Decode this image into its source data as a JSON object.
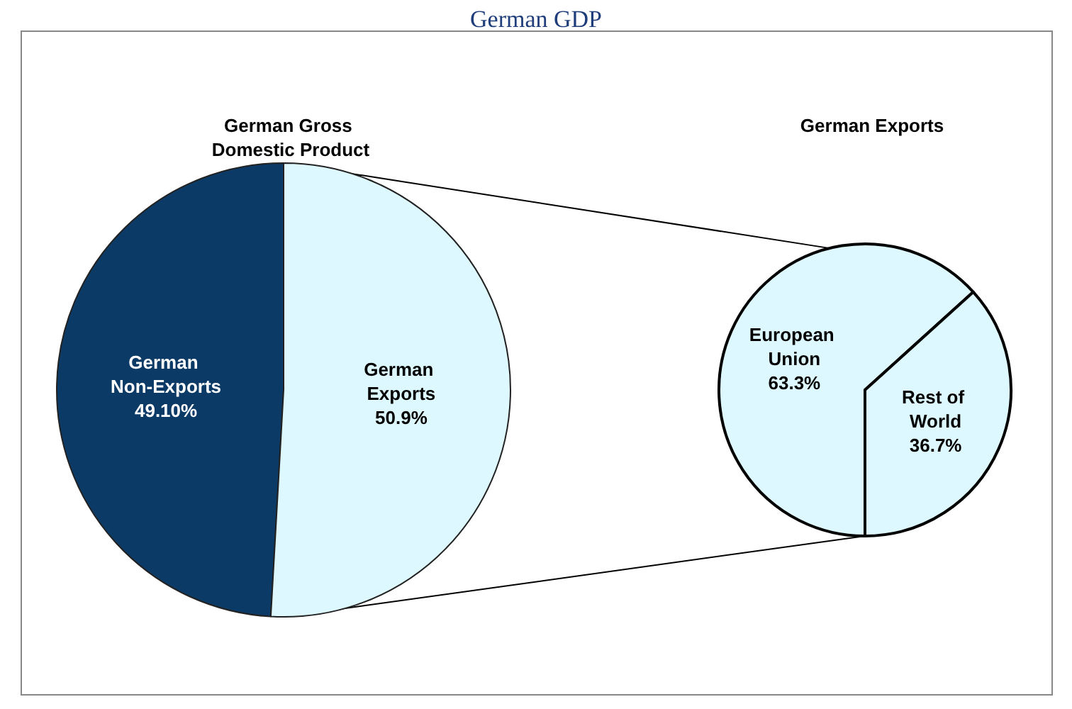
{
  "chart_data": [
    {
      "type": "pie",
      "title": "German GDP",
      "subtitle": "German Gross Domestic Product",
      "categories": [
        "German Non-Exports",
        "German Exports"
      ],
      "values": [
        49.1,
        50.9
      ],
      "value_labels": [
        "49.10%",
        "50.9%"
      ],
      "colors": [
        "#0b3a66",
        "#ddf8ff"
      ]
    },
    {
      "type": "pie",
      "title": "German Exports",
      "categories": [
        "European Union",
        "Rest of World"
      ],
      "values": [
        63.3,
        36.7
      ],
      "value_labels": [
        "63.3%",
        "36.7%"
      ],
      "colors": [
        "#ddf8ff",
        "#ddf8ff"
      ]
    }
  ]
}
